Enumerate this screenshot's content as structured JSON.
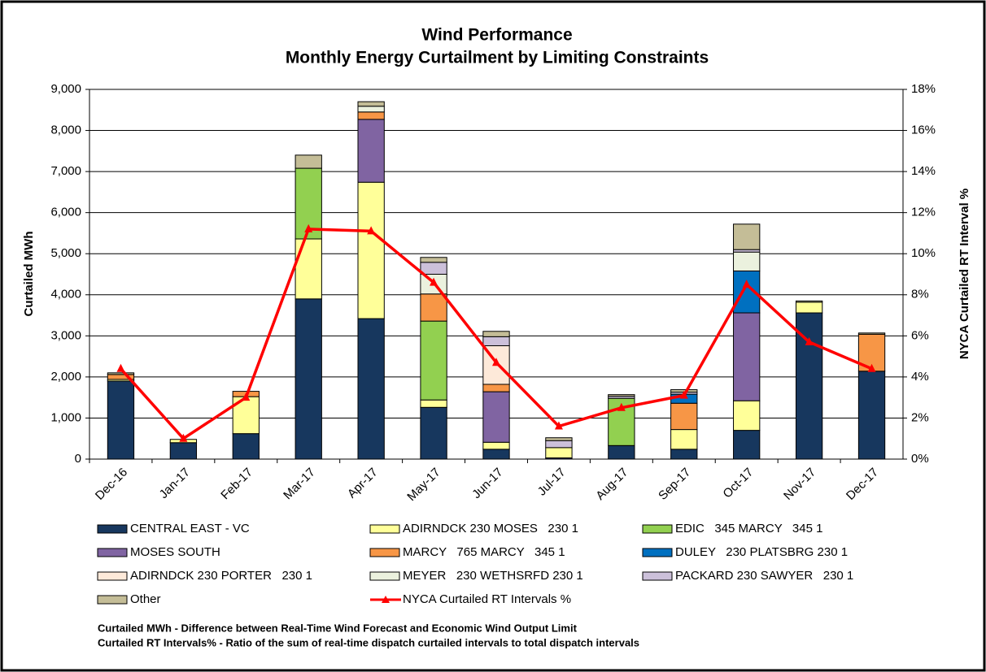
{
  "chart_data": {
    "type": "bar",
    "title": "Wind Performance",
    "subtitle": "Monthly Energy Curtailment by Limiting Constraints",
    "y_label": "Curtailed MWh",
    "y2_label": "NYCA Curtailed RT Interval %",
    "notes": [
      "Curtailed MWh - Difference between Real-Time Wind Forecast and Economic Wind Output Limit",
      "Curtailed RT Intervals% - Ratio of the sum of real-time dispatch curtailed intervals to total dispatch intervals"
    ],
    "stacked": true,
    "categories": [
      "Dec-16",
      "Jan-17",
      "Feb-17",
      "Mar-17",
      "Apr-17",
      "May-17",
      "Jun-17",
      "Jul-17",
      "Aug-17",
      "Sep-17",
      "Oct-17",
      "Nov-17",
      "Dec-17"
    ],
    "ylim": [
      0,
      9000
    ],
    "yticks": [
      0,
      {
        "value": 1000,
        "label": "1,000"
      },
      {
        "value": 2000,
        "label": "2,000"
      },
      {
        "value": 3000,
        "label": "3,000"
      },
      {
        "value": 4000,
        "label": "4,000"
      },
      {
        "value": 5000,
        "label": "5,000"
      },
      {
        "value": 6000,
        "label": "6,000"
      },
      {
        "value": 7000,
        "label": "7,000"
      },
      {
        "value": 8000,
        "label": "8,000"
      },
      {
        "value": 9000,
        "label": "9,000"
      }
    ],
    "y2lim": [
      0,
      18
    ],
    "y2ticks": [
      {
        "value": 0,
        "label": "0%"
      },
      {
        "value": 2,
        "label": "2%"
      },
      {
        "value": 4,
        "label": "4%"
      },
      {
        "value": 6,
        "label": "6%"
      },
      {
        "value": 8,
        "label": "8%"
      },
      {
        "value": 10,
        "label": "10%"
      },
      {
        "value": 12,
        "label": "12%"
      },
      {
        "value": 14,
        "label": "14%"
      },
      {
        "value": 16,
        "label": "16%"
      },
      {
        "value": 18,
        "label": "18%"
      }
    ],
    "grid": true,
    "series": [
      {
        "name": "CENTRAL EAST - VC",
        "color": "#17375e",
        "values": [
          1900,
          400,
          620,
          3900,
          3420,
          1260,
          240,
          30,
          330,
          240,
          700,
          3560,
          2140
        ]
      },
      {
        "name": "ADIRNDCK 230 MOSES   230 1",
        "color": "#ffff99",
        "values": [
          40,
          80,
          900,
          1460,
          3320,
          180,
          170,
          250,
          0,
          480,
          720,
          260,
          0
        ]
      },
      {
        "name": "EDIC   345 MARCY   345 1",
        "color": "#92d050",
        "values": [
          0,
          0,
          0,
          1720,
          0,
          1920,
          0,
          0,
          1150,
          0,
          0,
          0,
          0
        ]
      },
      {
        "name": "MOSES SOUTH",
        "color": "#8064a2",
        "values": [
          0,
          0,
          0,
          0,
          1530,
          0,
          1230,
          0,
          0,
          0,
          2140,
          0,
          0
        ]
      },
      {
        "name": "MARCY   765 MARCY   345 1",
        "color": "#f79646",
        "values": [
          120,
          0,
          130,
          0,
          180,
          660,
          180,
          0,
          0,
          640,
          0,
          0,
          900
        ]
      },
      {
        "name": "DULEY   230 PLATSBRG 230 1",
        "color": "#0070c0",
        "values": [
          0,
          0,
          0,
          0,
          0,
          0,
          0,
          0,
          0,
          220,
          1020,
          0,
          0
        ]
      },
      {
        "name": "ADIRNDCK 230 PORTER   230 1",
        "color": "#fde9d9",
        "values": [
          0,
          0,
          0,
          0,
          0,
          0,
          940,
          0,
          0,
          0,
          0,
          0,
          0
        ]
      },
      {
        "name": "MEYER   230 WETHSRFD 230 1",
        "color": "#ebf1de",
        "values": [
          0,
          0,
          0,
          0,
          140,
          480,
          0,
          0,
          0,
          0,
          460,
          0,
          0
        ]
      },
      {
        "name": "PACKARD 230 SAWYER   230 1",
        "color": "#ccc0da",
        "values": [
          0,
          0,
          0,
          0,
          0,
          290,
          220,
          170,
          50,
          50,
          60,
          0,
          0
        ]
      },
      {
        "name": "Other",
        "color": "#c4bd97",
        "values": [
          40,
          0,
          0,
          320,
          110,
          120,
          130,
          70,
          40,
          60,
          620,
          30,
          30
        ]
      },
      {
        "name": "NYCA Curtailed RT Intervals %",
        "color": "#ff0000",
        "type": "line",
        "axis": "y2",
        "values": [
          4.4,
          1.0,
          3.0,
          11.2,
          11.1,
          8.6,
          4.7,
          1.6,
          2.5,
          3.1,
          8.5,
          5.7,
          4.4
        ]
      }
    ]
  }
}
